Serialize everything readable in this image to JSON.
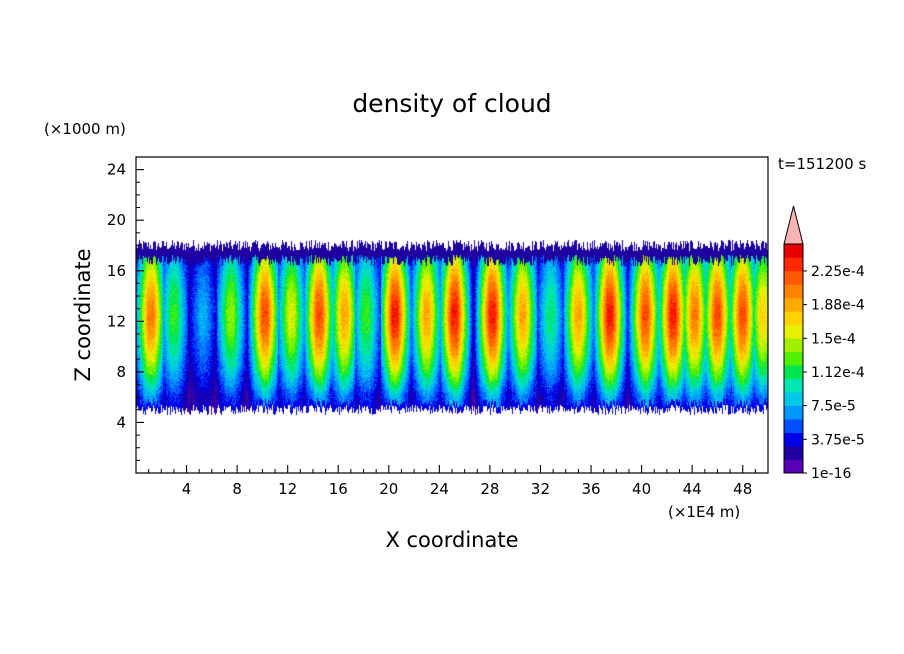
{
  "chart_data": {
    "type": "heatmap",
    "title": "density of cloud",
    "xlabel": "X coordinate",
    "ylabel": "Z coordinate",
    "x_unit": "(×1E4 m)",
    "y_unit": "(×1000 m)",
    "time_label": "t=151200 s",
    "xlim": [
      0,
      50
    ],
    "ylim": [
      0,
      25
    ],
    "xticks": [
      "4",
      "8",
      "12",
      "16",
      "20",
      "24",
      "28",
      "32",
      "36",
      "40",
      "44",
      "48"
    ],
    "yticks": [
      "4",
      "8",
      "12",
      "16",
      "20",
      "24"
    ],
    "colorbar": {
      "labels": [
        "1e-16",
        "3.75e-5",
        "7.5e-5",
        "1.12e-4",
        "1.5e-4",
        "1.88e-4",
        "2.25e-4"
      ],
      "colors": [
        "#5a00b4",
        "#1e00a0",
        "#0000e6",
        "#0050ff",
        "#0096ff",
        "#00c8e6",
        "#00e6b4",
        "#00e650",
        "#50f000",
        "#a0f000",
        "#e6f000",
        "#ffd200",
        "#ffaa00",
        "#ff8200",
        "#ff5a00",
        "#ff2800",
        "#e60000",
        "#ffb4b4"
      ]
    },
    "field": {
      "cloud_base": 5.0,
      "cloud_top": 18.0,
      "columns": [
        {
          "x": 1.2,
          "level": 12
        },
        {
          "x": 3.0,
          "level": 7
        },
        {
          "x": 5.3,
          "level": 4
        },
        {
          "x": 7.5,
          "level": 8
        },
        {
          "x": 10.2,
          "level": 13
        },
        {
          "x": 12.3,
          "level": 9
        },
        {
          "x": 14.5,
          "level": 13
        },
        {
          "x": 16.5,
          "level": 11
        },
        {
          "x": 18.2,
          "level": 7
        },
        {
          "x": 20.5,
          "level": 14
        },
        {
          "x": 23.0,
          "level": 11
        },
        {
          "x": 25.2,
          "level": 14
        },
        {
          "x": 28.2,
          "level": 14
        },
        {
          "x": 30.6,
          "level": 11
        },
        {
          "x": 32.8,
          "level": 6
        },
        {
          "x": 35.0,
          "level": 11
        },
        {
          "x": 37.5,
          "level": 14
        },
        {
          "x": 40.3,
          "level": 13
        },
        {
          "x": 42.5,
          "level": 14
        },
        {
          "x": 44.2,
          "level": 12
        },
        {
          "x": 46.0,
          "level": 13
        },
        {
          "x": 48.0,
          "level": 13
        },
        {
          "x": 49.6,
          "level": 10
        }
      ]
    }
  }
}
